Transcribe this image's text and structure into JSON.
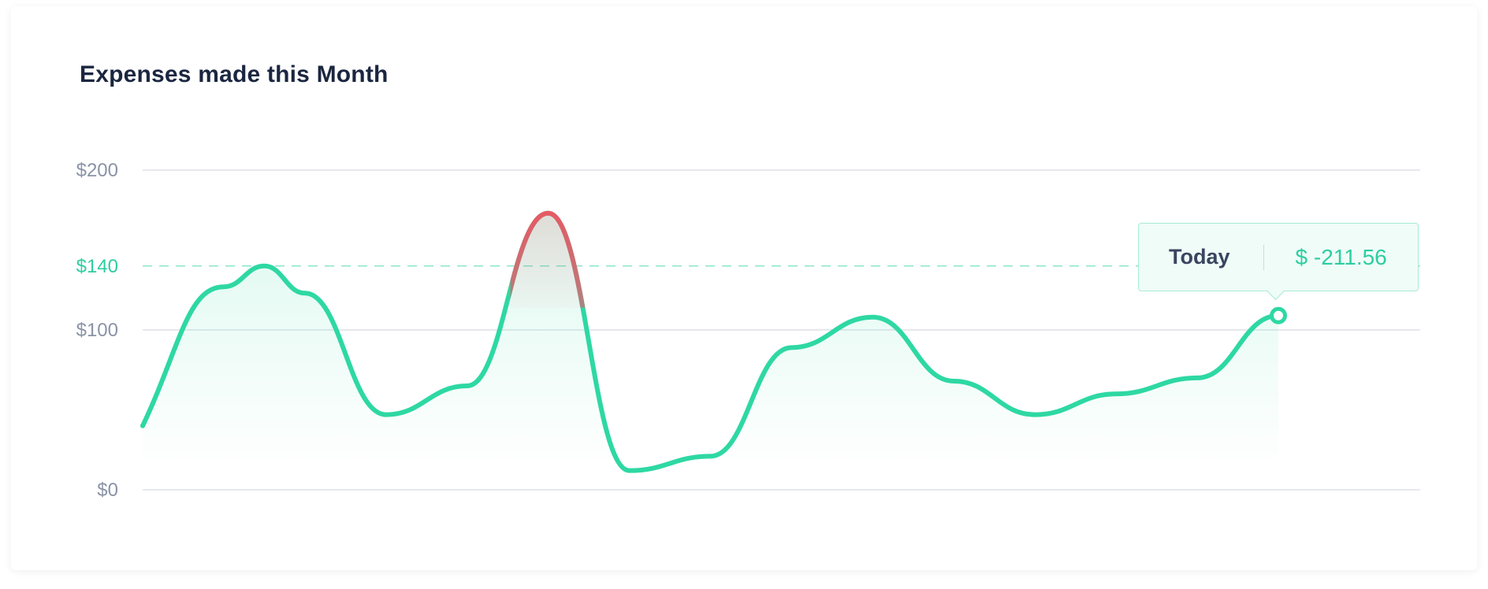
{
  "title": "Expenses made this Month",
  "colors": {
    "line": "#2ed8a3",
    "peak": "#e65a64",
    "reference": "#2ecda0",
    "grid": "#dde1e7",
    "axis_text": "#8a93a6"
  },
  "tooltip": {
    "label": "Today",
    "value": "$ -211.56"
  },
  "chart_data": {
    "type": "area",
    "title": "Expenses made this Month",
    "xlabel": "",
    "ylabel": "",
    "ylim": [
      0,
      200
    ],
    "yticks": [
      {
        "value": 0,
        "label": "$0"
      },
      {
        "value": 100,
        "label": "$100"
      },
      {
        "value": 140,
        "label": "$140",
        "highlight": true
      },
      {
        "value": 200,
        "label": "$200"
      }
    ],
    "reference_line": {
      "value": 140,
      "label": "$140",
      "style": "dashed"
    },
    "grid": true,
    "x": [
      0,
      0.5,
      1,
      1.5,
      2,
      2.5,
      3,
      3.5,
      4,
      4.5,
      5,
      5.5,
      6,
      6.5,
      7,
      7.5,
      8,
      8.5,
      9,
      9.5,
      10,
      10.5,
      11,
      11.5,
      12,
      12.5,
      13,
      13.5,
      14
    ],
    "series": [
      {
        "values": [
          40,
          127,
          140,
          123,
          47,
          65,
          173,
          12,
          21,
          89,
          108,
          68,
          47,
          60,
          70,
          109
        ],
        "x": [
          0,
          1,
          1.5,
          2,
          3,
          4,
          5,
          6,
          7,
          8,
          9,
          10,
          11,
          12,
          13,
          14
        ],
        "highlight_point": {
          "index": 15,
          "label": "Today"
        }
      }
    ]
  }
}
